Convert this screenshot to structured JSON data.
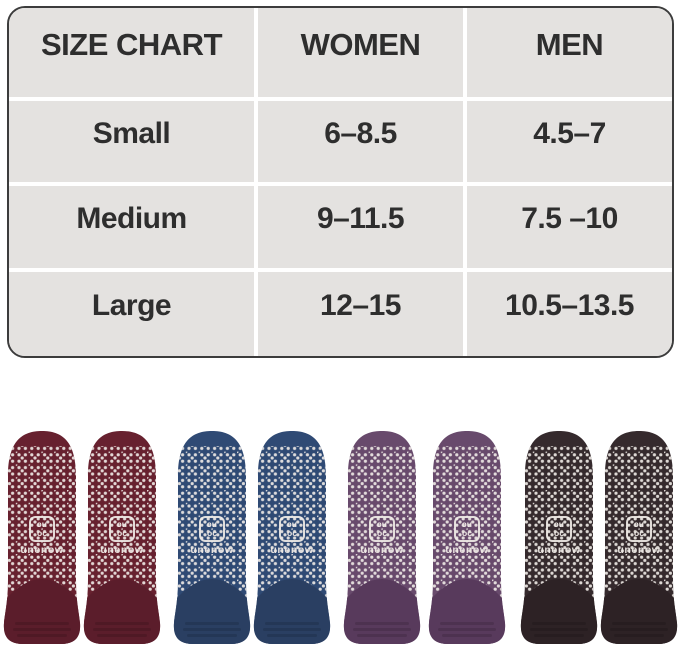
{
  "size_chart": {
    "headers": [
      "SIZE CHART",
      "WOMEN",
      "MEN"
    ],
    "rows": [
      {
        "size": "Small",
        "women": "6–8.5",
        "men": "4.5–7"
      },
      {
        "size": "Medium",
        "women": "9–11.5",
        "men": "7.5 –10"
      },
      {
        "size": "Large",
        "women": "12–15",
        "men": "10.5–13.5"
      }
    ],
    "colors": {
      "table_background": "#e4e2e0",
      "separator": "#ffffff",
      "border": "#3c3c3c",
      "text": "#2e2e2e"
    }
  },
  "chart_data": {
    "type": "table",
    "title": "SIZE CHART",
    "columns": [
      "SIZE CHART",
      "WOMEN",
      "MEN"
    ],
    "rows": [
      [
        "Small",
        "6–8.5",
        "4.5–7"
      ],
      [
        "Medium",
        "9–11.5",
        "7.5 –10"
      ],
      [
        "Large",
        "12–15",
        "10.5–13.5"
      ]
    ]
  },
  "socks": {
    "brand": "unenow",
    "logo_monogram_top": "ɔu",
    "logo_monogram_bottom": "oc",
    "pattern_dot_color": "#f0ebe7",
    "pairs": [
      {
        "name": "burgundy",
        "body": "#67212f",
        "heel": "#5b1d2b"
      },
      {
        "name": "navy",
        "body": "#2f4a74",
        "heel": "#2a3f62"
      },
      {
        "name": "plum",
        "body": "#684a6c",
        "heel": "#583a5c"
      },
      {
        "name": "dark-brown",
        "body": "#352a2d",
        "heel": "#2d2225"
      }
    ]
  }
}
